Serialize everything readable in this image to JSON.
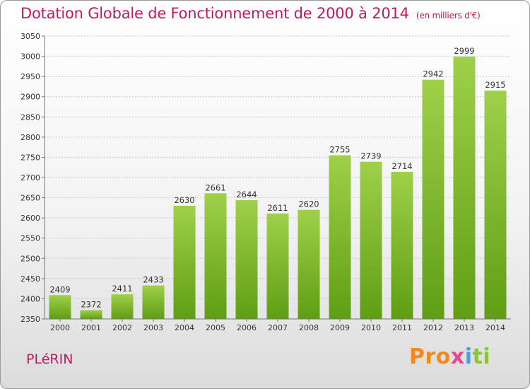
{
  "chart_data": {
    "type": "bar",
    "title": "Dotation Globale de Fonctionnement de 2000 à 2014",
    "subtitle": "(en milliers d'€)",
    "categories": [
      "2000",
      "2001",
      "2002",
      "2003",
      "2004",
      "2005",
      "2006",
      "2007",
      "2008",
      "2009",
      "2010",
      "2011",
      "2012",
      "2013",
      "2014"
    ],
    "values": [
      2409,
      2372,
      2411,
      2433,
      2630,
      2661,
      2644,
      2611,
      2620,
      2755,
      2739,
      2714,
      2942,
      2999,
      2915
    ],
    "ylim": [
      2350,
      3050
    ],
    "yticks": [
      2350,
      2400,
      2450,
      2500,
      2550,
      2600,
      2650,
      2700,
      2750,
      2800,
      2850,
      2900,
      2950,
      3000,
      3050
    ],
    "grid": true,
    "bar_color_top": "#9fd04a",
    "bar_color_bottom": "#5f9e14"
  },
  "commune": "PLéRIN",
  "logo": {
    "parts": [
      "Pro",
      "x",
      "i",
      "ti"
    ]
  },
  "colors": {
    "title": "#c1195d"
  }
}
